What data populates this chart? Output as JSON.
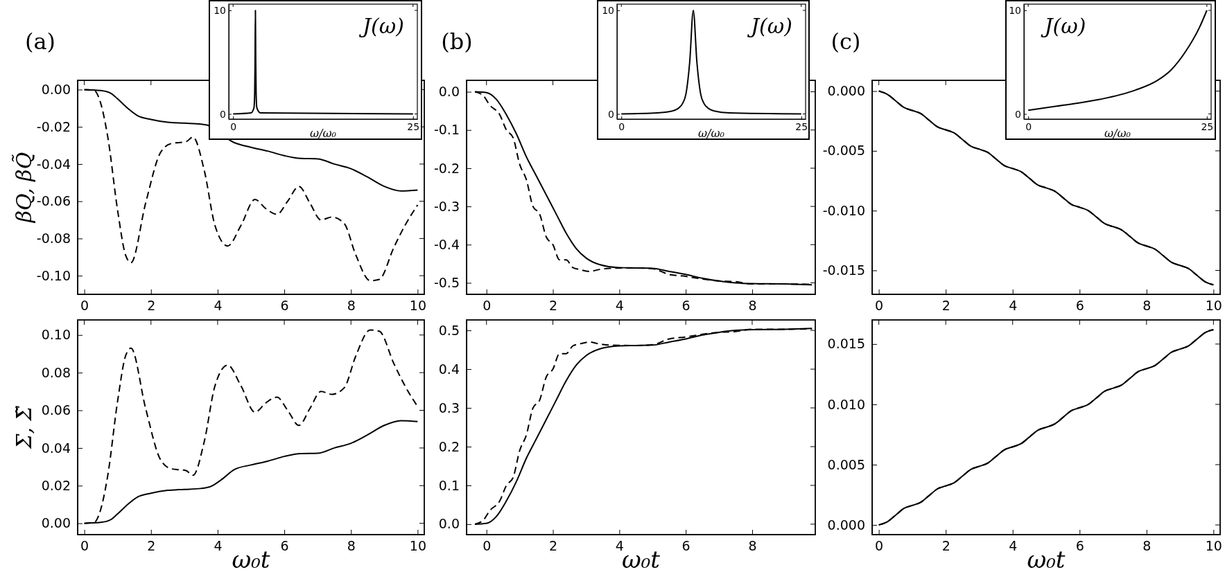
{
  "chart_data": [
    {
      "type": "line",
      "annotations": [
        "(a)"
      ],
      "ylabel": "βQ, βQ̃",
      "xlim": [
        -0.2,
        10.2
      ],
      "xticks": [
        0,
        2,
        4,
        6,
        8,
        10
      ],
      "ylim": [
        -0.11,
        0.005
      ],
      "yticks": [
        {
          "value": 0,
          "label": "0.00"
        },
        {
          "value": -0.02,
          "label": "-0.02"
        },
        {
          "value": -0.04,
          "label": "-0.04"
        },
        {
          "value": -0.06,
          "label": "-0.06"
        },
        {
          "value": -0.08,
          "label": "-0.08"
        },
        {
          "value": -0.1,
          "label": "-0.10"
        }
      ],
      "series": [
        {
          "color": "#000000",
          "line_style": "solid",
          "x": [
            0,
            0.5,
            0.8,
            1.0,
            1.3,
            1.6,
            2,
            2.5,
            3,
            3.5,
            3.68,
            4.5,
            5,
            5.5,
            6,
            6.5,
            7,
            7.5,
            8,
            8.5,
            9,
            9.5,
            10
          ],
          "values": [
            0,
            -0.0005,
            -0.002,
            -0.005,
            -0.01,
            -0.014,
            -0.016,
            -0.0175,
            -0.018,
            -0.0185,
            -0.019,
            -0.0285,
            -0.031,
            -0.033,
            -0.0355,
            -0.037,
            -0.0372,
            -0.04,
            -0.0425,
            -0.047,
            -0.052,
            -0.0545,
            -0.054
          ]
        },
        {
          "color": "#000000",
          "line_style": "dashed",
          "x": [
            0,
            0.3,
            0.45,
            0.7,
            1.0,
            1.24,
            1.4,
            1.84,
            2.28,
            2.6,
            3.05,
            3.26,
            3.6,
            3.92,
            4.3,
            4.7,
            5.12,
            5.45,
            5.78,
            6.1,
            6.44,
            6.77,
            7.1,
            7.43,
            7.8,
            8.14,
            8.58,
            8.85,
            9.29,
            9.62,
            10
          ],
          "values": [
            0,
            -0.0005,
            -0.005,
            -0.025,
            -0.065,
            -0.089,
            -0.093,
            -0.061,
            -0.034,
            -0.029,
            -0.028,
            -0.0255,
            -0.0435,
            -0.073,
            -0.084,
            -0.073,
            -0.059,
            -0.064,
            -0.067,
            -0.06,
            -0.052,
            -0.061,
            -0.07,
            -0.0685,
            -0.072,
            -0.0886,
            -0.1027,
            -0.102,
            -0.0847,
            -0.073,
            -0.062
          ]
        }
      ]
    },
    {
      "type": "line",
      "ylabel": "Σ, Σ̃",
      "xlabel": "ω₀t",
      "xlim": [
        -0.2,
        10.2
      ],
      "xticks": [
        0,
        2,
        4,
        6,
        8,
        10
      ],
      "ylim": [
        -0.006,
        0.108
      ],
      "yticks": [
        {
          "value": 0,
          "label": "0.00"
        },
        {
          "value": 0.02,
          "label": "0.02"
        },
        {
          "value": 0.04,
          "label": "0.04"
        },
        {
          "value": 0.06,
          "label": "0.06"
        },
        {
          "value": 0.08,
          "label": "0.08"
        },
        {
          "value": 0.1,
          "label": "0.10"
        }
      ],
      "series": [
        {
          "color": "#000000",
          "line_style": "solid",
          "x": [
            0,
            0.5,
            0.8,
            1.0,
            1.3,
            1.6,
            2,
            2.5,
            3,
            3.5,
            3.8,
            4.1,
            4.5,
            5,
            5.5,
            6,
            6.5,
            7,
            7.5,
            8,
            8.5,
            9,
            9.5,
            10
          ],
          "values": [
            0,
            0.0005,
            0.002,
            0.005,
            0.01,
            0.014,
            0.016,
            0.0175,
            0.018,
            0.0185,
            0.0196,
            0.023,
            0.0285,
            0.031,
            0.033,
            0.0355,
            0.037,
            0.0372,
            0.04,
            0.0425,
            0.047,
            0.052,
            0.0545,
            0.054
          ]
        },
        {
          "color": "#000000",
          "line_style": "dashed",
          "x": [
            0,
            0.3,
            0.45,
            0.7,
            1.0,
            1.24,
            1.4,
            1.84,
            2.28,
            2.6,
            3.05,
            3.26,
            3.6,
            3.92,
            4.3,
            4.7,
            5.12,
            5.45,
            5.78,
            6.1,
            6.44,
            6.77,
            7.1,
            7.43,
            7.8,
            8.14,
            8.58,
            8.85,
            9.29,
            9.62,
            10
          ],
          "values": [
            0,
            0.0005,
            0.005,
            0.025,
            0.065,
            0.089,
            0.093,
            0.061,
            0.034,
            0.029,
            0.028,
            0.0255,
            0.0435,
            0.073,
            0.084,
            0.073,
            0.059,
            0.064,
            0.067,
            0.06,
            0.052,
            0.061,
            0.07,
            0.0685,
            0.072,
            0.0886,
            0.1027,
            0.102,
            0.0847,
            0.073,
            0.062
          ]
        }
      ]
    },
    {
      "type": "line",
      "annotations": [
        "J(ω)"
      ],
      "xlabel": "ω/ω₀",
      "xlim": [
        -0.6,
        25.6
      ],
      "xticks": [
        0,
        25
      ],
      "ylim": [
        -0.5,
        10.6
      ],
      "yticks": [
        0,
        10
      ],
      "series": [
        {
          "color": "#000000",
          "line_style": "solid",
          "x": [
            0,
            2.5,
            2.9,
            3.0,
            3.05,
            3.1,
            3.15,
            3.2,
            3.3,
            3.8,
            25
          ],
          "values": [
            0,
            0.1,
            0.6,
            2,
            5,
            10,
            5,
            2,
            0.6,
            0.1,
            0
          ]
        }
      ]
    },
    {
      "type": "line",
      "annotations": [
        "(b)"
      ],
      "xlim": [
        -0.6,
        9.9
      ],
      "xticks": [
        0,
        2,
        4,
        6,
        8
      ],
      "ylim": [
        -0.53,
        0.03
      ],
      "yticks": [
        {
          "value": 0,
          "label": "0.0"
        },
        {
          "value": -0.1,
          "label": "-0.1"
        },
        {
          "value": -0.2,
          "label": "-0.2"
        },
        {
          "value": -0.3,
          "label": "-0.3"
        },
        {
          "value": -0.4,
          "label": "-0.4"
        },
        {
          "value": -0.5,
          "label": "-0.5"
        }
      ],
      "series": [
        {
          "color": "#000000",
          "line_style": "solid",
          "x": [
            -0.35,
            0,
            0.3,
            0.6,
            0.9,
            1.2,
            1.5,
            1.8,
            2.1,
            2.4,
            2.7,
            3.0,
            3.4,
            4,
            4.5,
            5,
            5.5,
            6,
            6.5,
            7,
            7.5,
            8,
            9,
            9.8
          ],
          "values": [
            0,
            -0.002,
            -0.02,
            -0.06,
            -0.11,
            -0.17,
            -0.22,
            -0.27,
            -0.32,
            -0.37,
            -0.41,
            -0.435,
            -0.452,
            -0.46,
            -0.461,
            -0.462,
            -0.47,
            -0.478,
            -0.488,
            -0.495,
            -0.5,
            -0.502,
            -0.503,
            -0.505
          ]
        },
        {
          "color": "#000000",
          "line_style": "dashed",
          "x": [
            -0.35,
            -0.1,
            0.1,
            0.4,
            0.6,
            0.8,
            1.0,
            1.2,
            1.4,
            1.6,
            1.8,
            2.0,
            2.2,
            2.4,
            2.6,
            2.8,
            3.1,
            3.4,
            3.7,
            4.5,
            5,
            5.5,
            6,
            6.5,
            7,
            7.5,
            8,
            9,
            9.8
          ],
          "values": [
            0,
            -0.01,
            -0.035,
            -0.06,
            -0.1,
            -0.12,
            -0.19,
            -0.23,
            -0.3,
            -0.32,
            -0.38,
            -0.4,
            -0.44,
            -0.44,
            -0.46,
            -0.465,
            -0.47,
            -0.465,
            -0.462,
            -0.461,
            -0.463,
            -0.478,
            -0.483,
            -0.49,
            -0.495,
            -0.497,
            -0.503,
            -0.503,
            -0.504
          ]
        }
      ]
    },
    {
      "type": "line",
      "xlabel": "ω₀t",
      "xlim": [
        -0.6,
        9.9
      ],
      "xticks": [
        0,
        2,
        4,
        6,
        8
      ],
      "ylim": [
        -0.027,
        0.527
      ],
      "yticks": [
        {
          "value": 0,
          "label": "0.0"
        },
        0.1,
        0.2,
        0.3,
        0.4,
        0.5
      ],
      "series": [
        {
          "color": "#000000",
          "line_style": "solid",
          "x": [
            -0.35,
            0,
            0.3,
            0.6,
            0.9,
            1.2,
            1.5,
            1.8,
            2.1,
            2.4,
            2.7,
            3.0,
            3.4,
            4,
            4.5,
            5,
            5.5,
            6,
            6.5,
            7,
            7.5,
            8,
            9,
            9.8
          ],
          "values": [
            0,
            0.002,
            0.02,
            0.06,
            0.11,
            0.17,
            0.22,
            0.27,
            0.32,
            0.37,
            0.41,
            0.435,
            0.452,
            0.46,
            0.461,
            0.462,
            0.47,
            0.478,
            0.488,
            0.495,
            0.5,
            0.502,
            0.503,
            0.505
          ]
        },
        {
          "color": "#000000",
          "line_style": "dashed",
          "x": [
            -0.35,
            -0.1,
            0.1,
            0.4,
            0.6,
            0.8,
            1.0,
            1.2,
            1.4,
            1.6,
            1.8,
            2.0,
            2.2,
            2.4,
            2.6,
            2.8,
            3.1,
            3.4,
            3.7,
            4.5,
            5,
            5.5,
            6,
            6.5,
            7,
            7.5,
            8,
            9,
            9.8
          ],
          "values": [
            0,
            0.01,
            0.035,
            0.06,
            0.1,
            0.12,
            0.19,
            0.23,
            0.3,
            0.32,
            0.38,
            0.4,
            0.44,
            0.44,
            0.46,
            0.465,
            0.47,
            0.465,
            0.462,
            0.461,
            0.463,
            0.478,
            0.483,
            0.49,
            0.495,
            0.497,
            0.503,
            0.503,
            0.504
          ]
        }
      ]
    },
    {
      "type": "line",
      "annotations": [
        "J(ω)"
      ],
      "xlabel": "ω/ω₀",
      "xlim": [
        -0.6,
        25.6
      ],
      "xticks": [
        0,
        25
      ],
      "ylim": [
        -0.5,
        10.6
      ],
      "yticks": [
        0,
        10
      ],
      "series": [
        {
          "color": "#000000",
          "line_style": "solid",
          "x": [
            0,
            5,
            7,
            8,
            8.5,
            9,
            9.5,
            10,
            10.5,
            11,
            11.5,
            12,
            13,
            15,
            25
          ],
          "values": [
            0,
            0.1,
            0.27,
            0.59,
            1,
            2,
            5,
            10,
            5,
            2,
            1,
            0.59,
            0.27,
            0.1,
            0
          ]
        }
      ]
    },
    {
      "type": "line",
      "annotations": [
        "(c)"
      ],
      "xlim": [
        -0.2,
        10.2
      ],
      "xticks": [
        0,
        2,
        4,
        6,
        8,
        10
      ],
      "ylim": [
        -0.017,
        0.0009
      ],
      "yticks": [
        {
          "value": 0,
          "label": "0.000"
        },
        {
          "value": -0.005,
          "label": "-0.005"
        },
        {
          "value": -0.01,
          "label": "-0.010"
        },
        {
          "value": -0.015,
          "label": "-0.015"
        }
      ],
      "x": [
        0,
        0.25,
        0.5,
        0.75,
        1,
        1.25,
        1.5,
        1.75,
        2,
        2.25,
        2.5,
        2.75,
        3,
        3.25,
        3.5,
        3.75,
        4,
        4.25,
        4.5,
        4.75,
        5,
        5.25,
        5.5,
        5.75,
        6,
        6.25,
        6.5,
        6.75,
        7,
        7.25,
        7.5,
        7.75,
        8,
        8.25,
        8.5,
        8.75,
        9,
        9.25,
        9.5,
        9.75,
        10
      ],
      "series": [
        {
          "color": "#000000",
          "line_style": "solid",
          "values": [
            0,
            -0.00026,
            -0.00081,
            -0.00137,
            -0.00162,
            -0.00188,
            -0.00243,
            -0.00299,
            -0.00324,
            -0.0035,
            -0.00405,
            -0.00461,
            -0.00486,
            -0.00512,
            -0.00567,
            -0.00623,
            -0.00648,
            -0.00674,
            -0.00729,
            -0.00785,
            -0.0081,
            -0.00836,
            -0.00891,
            -0.00947,
            -0.00972,
            -0.00998,
            -0.01053,
            -0.01109,
            -0.01134,
            -0.0116,
            -0.01215,
            -0.01271,
            -0.01296,
            -0.01322,
            -0.01377,
            -0.01433,
            -0.01458,
            -0.01484,
            -0.01539,
            -0.01595,
            -0.0162
          ]
        },
        {
          "color": "#000000",
          "line_style": "dashed",
          "values": [
            0,
            -0.00026,
            -0.00081,
            -0.00137,
            -0.00162,
            -0.00188,
            -0.00243,
            -0.00299,
            -0.00324,
            -0.0035,
            -0.00405,
            -0.00461,
            -0.00486,
            -0.00512,
            -0.00567,
            -0.00623,
            -0.00648,
            -0.00674,
            -0.00729,
            -0.00785,
            -0.0081,
            -0.00836,
            -0.00891,
            -0.00947,
            -0.00972,
            -0.00998,
            -0.01053,
            -0.01109,
            -0.01134,
            -0.0116,
            -0.01215,
            -0.01271,
            -0.01296,
            -0.01322,
            -0.01377,
            -0.01433,
            -0.01458,
            -0.01484,
            -0.01539,
            -0.01595,
            -0.0162
          ]
        }
      ]
    },
    {
      "type": "line",
      "xlabel": "ω₀t",
      "xlim": [
        -0.2,
        10.2
      ],
      "xticks": [
        0,
        2,
        4,
        6,
        8,
        10
      ],
      "ylim": [
        -0.0008,
        0.017
      ],
      "yticks": [
        {
          "value": 0,
          "label": "0.000"
        },
        {
          "value": 0.005,
          "label": "0.005"
        },
        {
          "value": 0.01,
          "label": "0.010"
        },
        {
          "value": 0.015,
          "label": "0.015"
        }
      ],
      "x": [
        0,
        0.25,
        0.5,
        0.75,
        1,
        1.25,
        1.5,
        1.75,
        2,
        2.25,
        2.5,
        2.75,
        3,
        3.25,
        3.5,
        3.75,
        4,
        4.25,
        4.5,
        4.75,
        5,
        5.25,
        5.5,
        5.75,
        6,
        6.25,
        6.5,
        6.75,
        7,
        7.25,
        7.5,
        7.75,
        8,
        8.25,
        8.5,
        8.75,
        9,
        9.25,
        9.5,
        9.75,
        10
      ],
      "series": [
        {
          "color": "#000000",
          "line_style": "solid",
          "values": [
            0,
            0.00026,
            0.00081,
            0.00137,
            0.00162,
            0.00188,
            0.00243,
            0.00299,
            0.00324,
            0.0035,
            0.00405,
            0.00461,
            0.00486,
            0.00512,
            0.00567,
            0.00623,
            0.00648,
            0.00674,
            0.00729,
            0.00785,
            0.0081,
            0.00836,
            0.00891,
            0.00947,
            0.00972,
            0.00998,
            0.01053,
            0.01109,
            0.01134,
            0.0116,
            0.01215,
            0.01271,
            0.01296,
            0.01322,
            0.01377,
            0.01433,
            0.01458,
            0.01484,
            0.01539,
            0.01595,
            0.0162
          ]
        },
        {
          "color": "#000000",
          "line_style": "dashed",
          "values": [
            0,
            0.00026,
            0.00081,
            0.00137,
            0.00162,
            0.00188,
            0.00243,
            0.00299,
            0.00324,
            0.0035,
            0.00405,
            0.00461,
            0.00486,
            0.00512,
            0.00567,
            0.00623,
            0.00648,
            0.00674,
            0.00729,
            0.00785,
            0.0081,
            0.00836,
            0.00891,
            0.00947,
            0.00972,
            0.00998,
            0.01053,
            0.01109,
            0.01134,
            0.0116,
            0.01215,
            0.01271,
            0.01296,
            0.01322,
            0.01377,
            0.01433,
            0.01458,
            0.01484,
            0.01539,
            0.01595,
            0.0162
          ]
        }
      ]
    },
    {
      "type": "line",
      "annotations": [
        "J(ω)"
      ],
      "xlabel": "ω/ω₀",
      "xlim": [
        -0.6,
        25.6
      ],
      "xticks": [
        0,
        25
      ],
      "ylim": [
        -0.5,
        10.6
      ],
      "yticks": [
        0,
        10
      ],
      "series": [
        {
          "color": "#000000",
          "line_style": "solid",
          "x": [
            0,
            5,
            10,
            15,
            18,
            20,
            22,
            24,
            25
          ],
          "values": [
            0.35,
            0.85,
            1.4,
            2.3,
            3.2,
            4.25,
            6,
            8.4,
            10
          ]
        }
      ]
    }
  ]
}
